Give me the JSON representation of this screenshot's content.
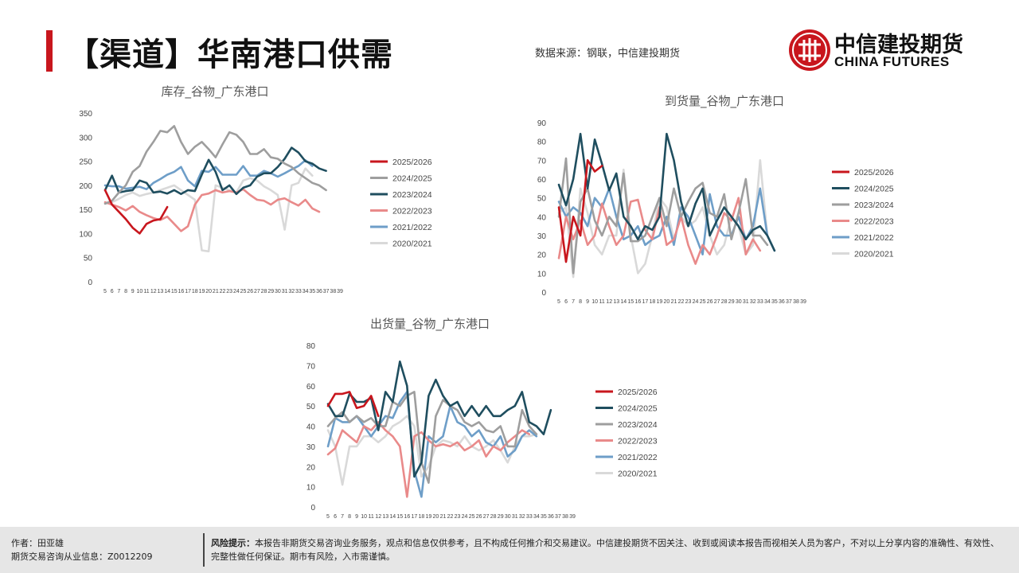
{
  "header": {
    "title": "【渠道】华南港口供需",
    "source": "数据来源：钢联，中信建投期货",
    "logo_cn": "中信建投期货",
    "logo_en": "CHINA FUTURES"
  },
  "colors": {
    "brand_red": "#c8161d",
    "series": [
      "#c8161d",
      "#9e9e9e",
      "#1f4e5f",
      "#e98a8a",
      "#6e9ec8",
      "#d9d9d9"
    ]
  },
  "chart_data": [
    {
      "type": "line",
      "title": "库存_谷物_广东港口",
      "x": [
        "5",
        "6",
        "7",
        "8",
        "9",
        "10",
        "11",
        "12",
        "13",
        "14",
        "15",
        "16",
        "17",
        "18",
        "19",
        "20",
        "21",
        "22",
        "23",
        "24",
        "25",
        "26",
        "27",
        "28",
        "29",
        "30",
        "31",
        "32",
        "33",
        "34",
        "35",
        "36",
        "37",
        "38",
        "39"
      ],
      "ylim": [
        0,
        350
      ],
      "yticks": [
        0,
        50,
        100,
        150,
        200,
        250,
        300,
        350
      ],
      "legend_position": "right",
      "series": [
        {
          "name": "2025/2026",
          "color": "#c8161d",
          "values": [
            190,
            160,
            145,
            130,
            112,
            100,
            120,
            127,
            130,
            155,
            null,
            null,
            null,
            null,
            null,
            null,
            null,
            null,
            null,
            null,
            null,
            null,
            null,
            null,
            null,
            null,
            null,
            null,
            null,
            null,
            null,
            null,
            null,
            null,
            null
          ]
        },
        {
          "name": "2024/2025",
          "color": "#9e9e9e",
          "values": [
            162,
            168,
            185,
            200,
            228,
            240,
            270,
            290,
            313,
            310,
            323,
            290,
            265,
            280,
            290,
            275,
            258,
            285,
            310,
            305,
            290,
            265,
            265,
            275,
            258,
            255,
            245,
            238,
            225,
            215,
            205,
            200,
            190,
            null,
            null
          ]
        },
        {
          "name": "2023/2024",
          "color": "#1f4e5f",
          "values": [
            190,
            220,
            185,
            188,
            190,
            210,
            205,
            185,
            187,
            183,
            190,
            182,
            190,
            188,
            222,
            253,
            228,
            190,
            200,
            182,
            195,
            200,
            218,
            225,
            225,
            238,
            255,
            278,
            268,
            250,
            245,
            235,
            230,
            null,
            null
          ]
        },
        {
          "name": "2022/2023",
          "color": "#e98a8a",
          "values": [
            165,
            160,
            155,
            148,
            157,
            145,
            138,
            132,
            128,
            135,
            120,
            105,
            115,
            160,
            180,
            183,
            190,
            185,
            188,
            185,
            192,
            180,
            170,
            168,
            160,
            170,
            173,
            165,
            158,
            170,
            152,
            145,
            null,
            null,
            null
          ]
        },
        {
          "name": "2021/2022",
          "color": "#6e9ec8",
          "values": [
            200,
            198,
            198,
            193,
            195,
            197,
            192,
            205,
            213,
            222,
            228,
            238,
            210,
            198,
            230,
            228,
            238,
            222,
            222,
            222,
            240,
            220,
            220,
            230,
            225,
            218,
            225,
            233,
            240,
            252,
            240,
            null,
            null,
            null,
            null
          ]
        },
        {
          "name": "2020/2021",
          "color": "#d9d9d9",
          "values": [
            162,
            165,
            172,
            180,
            185,
            178,
            182,
            185,
            190,
            195,
            200,
            190,
            180,
            170,
            65,
            63,
            200,
            195,
            190,
            185,
            210,
            215,
            210,
            198,
            190,
            180,
            108,
            200,
            205,
            235,
            220,
            null,
            null,
            null,
            null
          ]
        }
      ]
    },
    {
      "type": "line",
      "title": "到货量_谷物_广东港口",
      "x": [
        "5",
        "6",
        "7",
        "8",
        "9",
        "10",
        "11",
        "12",
        "13",
        "14",
        "15",
        "16",
        "17",
        "18",
        "19",
        "20",
        "21",
        "22",
        "23",
        "24",
        "25",
        "26",
        "27",
        "28",
        "29",
        "30",
        "31",
        "32",
        "33",
        "34",
        "35",
        "36",
        "37",
        "38",
        "39"
      ],
      "ylim": [
        0,
        90
      ],
      "yticks": [
        0,
        10,
        20,
        30,
        40,
        50,
        60,
        70,
        80,
        90
      ],
      "legend_position": "right",
      "series": [
        {
          "name": "2025/2026",
          "color": "#c8161d",
          "values": [
            45,
            16,
            40,
            30,
            70,
            64,
            67,
            null,
            null,
            null,
            null,
            null,
            null,
            null,
            null,
            null,
            null,
            null,
            null,
            null,
            null,
            null,
            null,
            null,
            null,
            null,
            null,
            null,
            null,
            null,
            null,
            null,
            null,
            null,
            null
          ]
        },
        {
          "name": "2024/2025",
          "color": "#1f4e5f",
          "values": [
            57,
            46,
            60,
            84,
            55,
            81,
            68,
            54,
            63,
            40,
            35,
            28,
            35,
            33,
            40,
            84,
            70,
            48,
            35,
            47,
            55,
            30,
            38,
            45,
            40,
            35,
            28,
            33,
            35,
            30,
            22,
            null,
            null,
            null,
            null
          ]
        },
        {
          "name": "2023/2024",
          "color": "#9e9e9e",
          "values": [
            40,
            71,
            10,
            48,
            55,
            38,
            30,
            40,
            35,
            63,
            27,
            27,
            30,
            40,
            50,
            35,
            55,
            40,
            48,
            55,
            58,
            42,
            40,
            52,
            28,
            42,
            60,
            30,
            30,
            25,
            null,
            null,
            null,
            null,
            null
          ]
        },
        {
          "name": "2022/2023",
          "color": "#e98a8a",
          "values": [
            18,
            40,
            28,
            38,
            25,
            30,
            47,
            35,
            25,
            30,
            48,
            49,
            33,
            28,
            45,
            25,
            28,
            40,
            25,
            15,
            25,
            20,
            30,
            42,
            38,
            50,
            20,
            28,
            22,
            null,
            null,
            null,
            null,
            null,
            null
          ]
        },
        {
          "name": "2021/2022",
          "color": "#6e9ec8",
          "values": [
            48,
            40,
            45,
            42,
            35,
            50,
            45,
            55,
            40,
            28,
            30,
            35,
            25,
            28,
            30,
            40,
            25,
            45,
            40,
            30,
            20,
            52,
            35,
            30,
            30,
            40,
            28,
            35,
            55,
            30,
            22,
            null,
            null,
            null,
            null
          ]
        },
        {
          "name": "2020/2021",
          "color": "#d9d9d9",
          "values": [
            42,
            45,
            8,
            55,
            42,
            25,
            20,
            30,
            30,
            65,
            30,
            10,
            15,
            30,
            50,
            45,
            28,
            40,
            35,
            38,
            45,
            30,
            20,
            25,
            40,
            35,
            20,
            25,
            70,
            30,
            null,
            null,
            null,
            null,
            null
          ]
        }
      ]
    },
    {
      "type": "line",
      "title": "出货量_谷物_广东港口",
      "x": [
        "5",
        "6",
        "7",
        "8",
        "9",
        "10",
        "11",
        "12",
        "13",
        "14",
        "15",
        "16",
        "17",
        "18",
        "19",
        "20",
        "21",
        "22",
        "23",
        "24",
        "25",
        "26",
        "27",
        "28",
        "29",
        "30",
        "31",
        "32",
        "33",
        "34",
        "35",
        "36",
        "37",
        "38",
        "39"
      ],
      "ylim": [
        0,
        80
      ],
      "yticks": [
        0,
        10,
        20,
        30,
        40,
        50,
        60,
        70,
        80
      ],
      "legend_position": "right",
      "series": [
        {
          "name": "2025/2026",
          "color": "#c8161d",
          "values": [
            50,
            56,
            56,
            57,
            49,
            50,
            55,
            45,
            null,
            null,
            null,
            null,
            null,
            null,
            null,
            null,
            null,
            null,
            null,
            null,
            null,
            null,
            null,
            null,
            null,
            null,
            null,
            null,
            null,
            null,
            null,
            null,
            null,
            null,
            null
          ]
        },
        {
          "name": "2024/2025",
          "color": "#1f4e5f",
          "values": [
            51,
            45,
            45,
            56,
            52,
            52,
            54,
            38,
            57,
            52,
            72,
            60,
            15,
            22,
            55,
            63,
            55,
            50,
            52,
            45,
            50,
            45,
            50,
            45,
            45,
            48,
            50,
            57,
            42,
            40,
            36,
            48,
            null,
            null,
            null
          ]
        },
        {
          "name": "2023/2024",
          "color": "#9e9e9e",
          "values": [
            40,
            44,
            47,
            42,
            45,
            42,
            44,
            40,
            40,
            52,
            50,
            55,
            57,
            22,
            12,
            45,
            53,
            50,
            48,
            42,
            40,
            42,
            38,
            37,
            40,
            30,
            30,
            48,
            40,
            36,
            null,
            null,
            null,
            null,
            null
          ]
        },
        {
          "name": "2022/2023",
          "color": "#e98a8a",
          "values": [
            26,
            29,
            38,
            35,
            32,
            40,
            38,
            42,
            38,
            35,
            30,
            5,
            35,
            37,
            33,
            30,
            31,
            30,
            32,
            28,
            30,
            33,
            25,
            30,
            28,
            32,
            35,
            38,
            36,
            null,
            null,
            null,
            null,
            null,
            null
          ]
        },
        {
          "name": "2021/2022",
          "color": "#6e9ec8",
          "values": [
            30,
            44,
            42,
            42,
            45,
            40,
            35,
            40,
            45,
            44,
            52,
            57,
            18,
            5,
            35,
            32,
            35,
            50,
            42,
            40,
            35,
            38,
            32,
            30,
            35,
            25,
            28,
            35,
            38,
            35,
            null,
            null,
            null,
            null,
            null
          ]
        },
        {
          "name": "2020/2021",
          "color": "#d9d9d9",
          "values": [
            38,
            30,
            11,
            30,
            30,
            35,
            35,
            32,
            35,
            40,
            42,
            45,
            40,
            15,
            20,
            30,
            33,
            32,
            30,
            35,
            30,
            28,
            30,
            33,
            28,
            22,
            30,
            35,
            35,
            36,
            null,
            null,
            null,
            null,
            null
          ]
        }
      ]
    }
  ],
  "footer": {
    "author_line1": "作者：田亚雄",
    "author_line2": "期货交易咨询从业信息：Z0012209",
    "risk_label": "风险提示：",
    "risk_text": "本报告非期货交易咨询业务服务，观点和信息仅供参考，且不构成任何推介和交易建议。中信建投期货不因关注、收到或阅读本报告而视相关人员为客户，不对以上分享内容的准确性、有效性、完整性做任何保证。期市有风险，入市需谨慎。"
  }
}
